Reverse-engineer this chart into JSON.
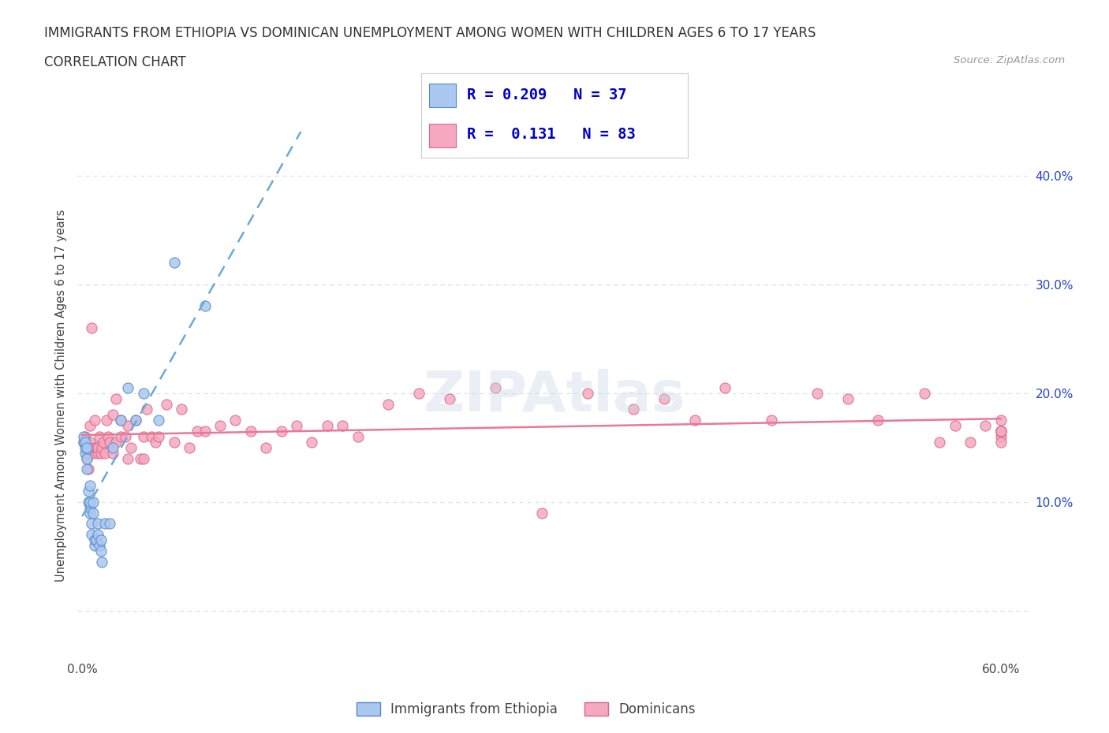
{
  "title_line1": "IMMIGRANTS FROM ETHIOPIA VS DOMINICAN UNEMPLOYMENT AMONG WOMEN WITH CHILDREN AGES 6 TO 17 YEARS",
  "title_line2": "CORRELATION CHART",
  "source": "Source: ZipAtlas.com",
  "ylabel": "Unemployment Among Women with Children Ages 6 to 17 years",
  "xlim": [
    -0.003,
    0.62
  ],
  "ylim": [
    -0.045,
    0.44
  ],
  "xticks": [
    0.0,
    0.1,
    0.2,
    0.3,
    0.4,
    0.5,
    0.6
  ],
  "xticklabels": [
    "0.0%",
    "",
    "",
    "",
    "",
    "",
    "60.0%"
  ],
  "ytick_positions": [
    0.0,
    0.1,
    0.2,
    0.3,
    0.4
  ],
  "right_yticklabels": [
    "",
    "10.0%",
    "20.0%",
    "30.0%",
    "40.0%"
  ],
  "legend_r1": "R = 0.209",
  "legend_n1": "N = 37",
  "legend_r2": "R =  0.131",
  "legend_n2": "N = 83",
  "eth_color": "#aac8f0",
  "eth_edge": "#5888c8",
  "dom_color": "#f5a8c0",
  "dom_edge": "#d86888",
  "trendline_eth_color": "#6aaad8",
  "trendline_dom_color": "#e87898",
  "grid_color": "#d8e0ec",
  "eth_x": [
    0.001,
    0.001,
    0.002,
    0.002,
    0.002,
    0.003,
    0.003,
    0.003,
    0.004,
    0.004,
    0.005,
    0.005,
    0.005,
    0.005,
    0.006,
    0.006,
    0.007,
    0.007,
    0.008,
    0.008,
    0.009,
    0.01,
    0.01,
    0.011,
    0.012,
    0.012,
    0.013,
    0.015,
    0.018,
    0.02,
    0.025,
    0.03,
    0.035,
    0.04,
    0.05,
    0.06,
    0.08
  ],
  "eth_y": [
    0.155,
    0.16,
    0.145,
    0.15,
    0.155,
    0.13,
    0.14,
    0.15,
    0.1,
    0.11,
    0.09,
    0.095,
    0.1,
    0.115,
    0.07,
    0.08,
    0.09,
    0.1,
    0.06,
    0.065,
    0.065,
    0.07,
    0.08,
    0.06,
    0.055,
    0.065,
    0.045,
    0.08,
    0.08,
    0.15,
    0.175,
    0.205,
    0.175,
    0.2,
    0.175,
    0.32,
    0.28
  ],
  "dom_x": [
    0.001,
    0.002,
    0.003,
    0.003,
    0.004,
    0.005,
    0.005,
    0.005,
    0.006,
    0.007,
    0.008,
    0.008,
    0.009,
    0.01,
    0.01,
    0.011,
    0.012,
    0.013,
    0.014,
    0.015,
    0.016,
    0.017,
    0.018,
    0.02,
    0.02,
    0.022,
    0.022,
    0.025,
    0.025,
    0.028,
    0.03,
    0.03,
    0.032,
    0.035,
    0.038,
    0.04,
    0.04,
    0.042,
    0.045,
    0.048,
    0.05,
    0.055,
    0.06,
    0.065,
    0.07,
    0.075,
    0.08,
    0.09,
    0.1,
    0.11,
    0.12,
    0.13,
    0.14,
    0.15,
    0.16,
    0.17,
    0.18,
    0.2,
    0.22,
    0.24,
    0.27,
    0.3,
    0.33,
    0.36,
    0.38,
    0.4,
    0.42,
    0.45,
    0.48,
    0.5,
    0.52,
    0.55,
    0.56,
    0.57,
    0.58,
    0.59,
    0.6,
    0.6,
    0.6,
    0.6,
    0.6,
    0.6,
    0.6
  ],
  "dom_y": [
    0.155,
    0.16,
    0.14,
    0.145,
    0.13,
    0.145,
    0.155,
    0.17,
    0.26,
    0.145,
    0.15,
    0.175,
    0.15,
    0.145,
    0.15,
    0.16,
    0.145,
    0.15,
    0.155,
    0.145,
    0.175,
    0.16,
    0.155,
    0.145,
    0.18,
    0.155,
    0.195,
    0.16,
    0.175,
    0.16,
    0.14,
    0.17,
    0.15,
    0.175,
    0.14,
    0.14,
    0.16,
    0.185,
    0.16,
    0.155,
    0.16,
    0.19,
    0.155,
    0.185,
    0.15,
    0.165,
    0.165,
    0.17,
    0.175,
    0.165,
    0.15,
    0.165,
    0.17,
    0.155,
    0.17,
    0.17,
    0.16,
    0.19,
    0.2,
    0.195,
    0.205,
    0.09,
    0.2,
    0.185,
    0.195,
    0.175,
    0.205,
    0.175,
    0.2,
    0.195,
    0.175,
    0.2,
    0.155,
    0.17,
    0.155,
    0.17,
    0.16,
    0.165,
    0.165,
    0.155,
    0.165,
    0.175,
    0.165
  ]
}
